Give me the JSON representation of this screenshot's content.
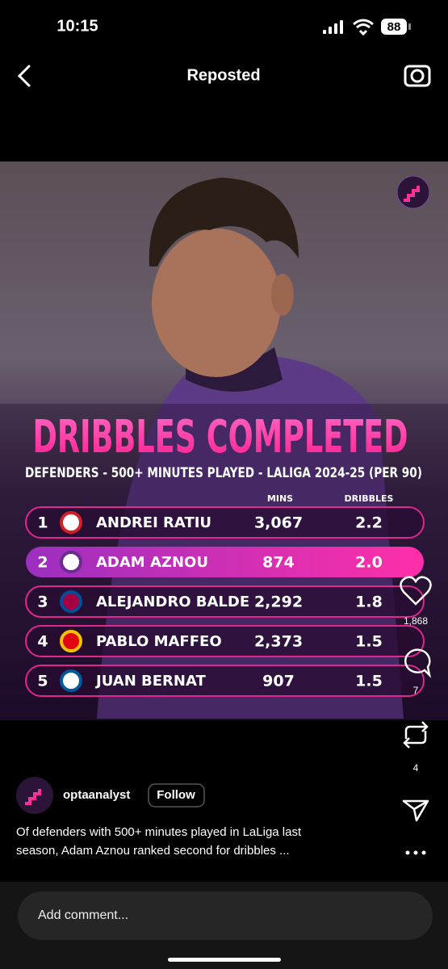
{
  "status_bar": {
    "time": "10:15",
    "battery": "88"
  },
  "header": {
    "title": "Reposted"
  },
  "post_image": {
    "title": "DRIBBLES COMPLETED",
    "subtitle": "DEFENDERS - 500+ MINUTES PLAYED - LALIGA 2024-25 (PER 90)",
    "table": {
      "columns": [
        "MINS",
        "DRIBBLES"
      ],
      "rows": [
        [
          "1",
          "ANDREI RATIU",
          "3,067",
          "2.2"
        ],
        [
          "2",
          "ADAM AZNOU",
          "874",
          "2.0"
        ],
        [
          "3",
          "ALEJANDRO BALDE",
          "2,292",
          "1.8"
        ],
        [
          "4",
          "PABLO MAFFEO",
          "2,373",
          "1.5"
        ],
        [
          "5",
          "JUAN BERNAT",
          "907",
          "1.5"
        ]
      ]
    }
  },
  "actions": {
    "likes": "1,868",
    "comments": "7",
    "reposts": "4"
  },
  "post": {
    "account": "optaanalyst",
    "follow": "Follow",
    "caption": [
      "Of defenders with 500+ minutes played in LaLiga last",
      "season, Adam Aznou ranked second for dribbles ..."
    ]
  },
  "comment_box": {
    "placeholder": "Add comment..."
  }
}
